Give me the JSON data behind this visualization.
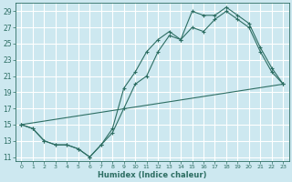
{
  "xlabel": "Humidex (Indice chaleur)",
  "ylabel": "",
  "bg_color": "#cde8f0",
  "grid_color": "#ffffff",
  "line_color": "#2d6e63",
  "xlim": [
    -0.5,
    23.5
  ],
  "ylim": [
    10.5,
    30.0
  ],
  "xticks": [
    0,
    1,
    2,
    3,
    4,
    5,
    6,
    7,
    8,
    9,
    10,
    11,
    12,
    13,
    14,
    15,
    16,
    17,
    18,
    19,
    20,
    21,
    22,
    23
  ],
  "yticks": [
    11,
    13,
    15,
    17,
    19,
    21,
    23,
    25,
    27,
    29
  ],
  "line1_x": [
    0,
    1,
    2,
    3,
    4,
    5,
    6,
    7,
    8,
    9,
    10,
    11,
    12,
    13,
    14,
    15,
    16,
    17,
    18,
    19,
    20,
    21,
    22,
    23
  ],
  "line1_y": [
    15,
    14.5,
    13,
    12.5,
    12.5,
    12,
    11,
    12.5,
    14.5,
    19.5,
    21.5,
    24,
    25.5,
    26.5,
    25.5,
    29,
    28.5,
    28.5,
    29.5,
    28.5,
    27.5,
    24.5,
    22,
    20
  ],
  "line2_x": [
    0,
    1,
    2,
    3,
    4,
    5,
    6,
    7,
    8,
    9,
    10,
    11,
    12,
    13,
    14,
    15,
    16,
    17,
    18,
    19,
    20,
    21,
    22,
    23
  ],
  "line2_y": [
    15,
    14.5,
    13,
    12.5,
    12.5,
    12,
    11,
    12.5,
    14,
    17,
    20,
    21,
    24,
    26,
    25.5,
    27,
    26.5,
    28,
    29,
    28,
    27,
    24,
    21.5,
    20
  ],
  "line3_x": [
    0,
    23
  ],
  "line3_y": [
    15,
    20
  ]
}
